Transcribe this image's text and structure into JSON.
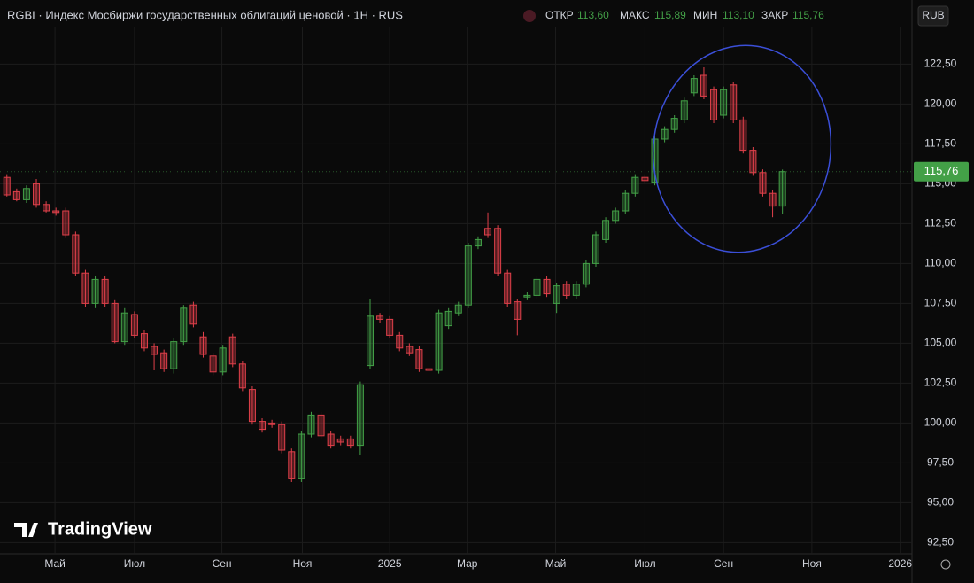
{
  "header": {
    "symbol": "RGBI · Индекс Мосбиржи государственных облигаций ценовой · 1Н · RUS",
    "open_label": "ОТКР",
    "open": "113,60",
    "high_label": "МАКС",
    "high": "115,89",
    "low_label": "МИН",
    "low": "113,10",
    "close_label": "ЗАКР",
    "close": "115,76",
    "currency": "RUB",
    "logo": "TradingView"
  },
  "chart_data": {
    "type": "candlestick",
    "up_color": "#43a047",
    "down_color": "#e0404a",
    "xlim": [
      -0.7,
      92.2
    ],
    "xticks": [
      {
        "value": 4.9,
        "label": "Май"
      },
      {
        "value": 13.0,
        "label": "Июл"
      },
      {
        "value": 21.9,
        "label": "Сен"
      },
      {
        "value": 30.1,
        "label": "Ноя"
      },
      {
        "value": 39.0,
        "label": "2025"
      },
      {
        "value": 46.9,
        "label": "Мар"
      },
      {
        "value": 55.9,
        "label": "Май"
      },
      {
        "value": 65.0,
        "label": "Июл"
      },
      {
        "value": 73.0,
        "label": "Сен"
      },
      {
        "value": 82.0,
        "label": "Ноя"
      },
      {
        "value": 91.0,
        "label": "2026"
      }
    ],
    "ylim": [
      91.8,
      124.8
    ],
    "yticks": [
      {
        "value": 92.5,
        "label": "92,50"
      },
      {
        "value": 95,
        "label": "95,00"
      },
      {
        "value": 97.5,
        "label": "97,50"
      },
      {
        "value": 100,
        "label": "100,00"
      },
      {
        "value": 102.5,
        "label": "102,50"
      },
      {
        "value": 105,
        "label": "105,00"
      },
      {
        "value": 107.5,
        "label": "107,50"
      },
      {
        "value": 110,
        "label": "110,00"
      },
      {
        "value": 112.5,
        "label": "112,50"
      },
      {
        "value": 115,
        "label": "115,00"
      },
      {
        "value": 117.5,
        "label": "117,50"
      },
      {
        "value": 120,
        "label": "120,00"
      },
      {
        "value": 122.5,
        "label": "122,50"
      }
    ],
    "last_price": {
      "value": 115.76,
      "label": "115,76"
    },
    "candles": [
      [
        115.4,
        115.6,
        114.2,
        114.3
      ],
      [
        114.5,
        114.7,
        113.9,
        114.0
      ],
      [
        114.0,
        114.9,
        113.8,
        114.7
      ],
      [
        115.0,
        115.3,
        113.5,
        113.7
      ],
      [
        113.7,
        113.9,
        113.2,
        113.3
      ],
      [
        113.3,
        113.5,
        113.0,
        113.2
      ],
      [
        113.3,
        113.5,
        111.6,
        111.8
      ],
      [
        111.8,
        112.0,
        109.2,
        109.4
      ],
      [
        109.4,
        109.6,
        107.3,
        107.5
      ],
      [
        107.5,
        109.2,
        107.2,
        109.0
      ],
      [
        109.0,
        109.2,
        107.3,
        107.5
      ],
      [
        107.5,
        107.7,
        105.0,
        105.1
      ],
      [
        105.1,
        107.2,
        104.9,
        106.9
      ],
      [
        106.8,
        107.0,
        105.3,
        105.5
      ],
      [
        105.6,
        105.8,
        104.5,
        104.7
      ],
      [
        104.8,
        105.0,
        103.3,
        104.3
      ],
      [
        104.4,
        104.6,
        103.2,
        103.4
      ],
      [
        103.4,
        105.3,
        103.1,
        105.1
      ],
      [
        105.1,
        107.4,
        104.9,
        107.2
      ],
      [
        107.4,
        107.6,
        106.0,
        106.2
      ],
      [
        105.4,
        105.7,
        104.1,
        104.3
      ],
      [
        104.2,
        104.4,
        103.0,
        103.2
      ],
      [
        103.2,
        104.9,
        103.0,
        104.7
      ],
      [
        105.4,
        105.6,
        103.5,
        103.7
      ],
      [
        103.7,
        103.9,
        102.0,
        102.2
      ],
      [
        102.1,
        102.3,
        99.9,
        100.1
      ],
      [
        100.1,
        100.3,
        99.4,
        99.6
      ],
      [
        100.0,
        100.2,
        99.7,
        99.9
      ],
      [
        99.9,
        100.1,
        98.1,
        98.3
      ],
      [
        98.2,
        98.4,
        96.3,
        96.5
      ],
      [
        96.5,
        99.5,
        96.3,
        99.3
      ],
      [
        99.3,
        100.7,
        99.1,
        100.5
      ],
      [
        100.5,
        100.7,
        99.0,
        99.2
      ],
      [
        99.3,
        99.5,
        98.4,
        98.6
      ],
      [
        99.0,
        99.2,
        98.6,
        98.8
      ],
      [
        99.0,
        99.2,
        98.4,
        98.6
      ],
      [
        98.6,
        102.6,
        98.0,
        102.4
      ],
      [
        103.6,
        107.8,
        103.4,
        106.7
      ],
      [
        106.7,
        106.9,
        106.3,
        106.5
      ],
      [
        106.5,
        106.7,
        105.3,
        105.5
      ],
      [
        105.5,
        105.7,
        104.5,
        104.7
      ],
      [
        104.8,
        105.0,
        104.2,
        104.4
      ],
      [
        104.6,
        104.8,
        103.2,
        103.4
      ],
      [
        103.4,
        103.6,
        102.3,
        103.3
      ],
      [
        103.3,
        107.1,
        103.1,
        106.9
      ],
      [
        106.1,
        107.2,
        105.9,
        107.0
      ],
      [
        106.9,
        107.6,
        106.7,
        107.4
      ],
      [
        107.4,
        111.3,
        107.2,
        111.1
      ],
      [
        111.1,
        111.7,
        110.9,
        111.5
      ],
      [
        112.2,
        113.2,
        111.6,
        111.8
      ],
      [
        112.2,
        112.4,
        109.2,
        109.4
      ],
      [
        109.4,
        109.6,
        107.3,
        107.5
      ],
      [
        107.6,
        107.8,
        105.5,
        106.5
      ],
      [
        107.9,
        108.2,
        107.7,
        108.0
      ],
      [
        108.0,
        109.2,
        107.8,
        109.0
      ],
      [
        109.0,
        109.2,
        107.9,
        108.1
      ],
      [
        107.5,
        108.8,
        106.9,
        108.6
      ],
      [
        108.7,
        108.9,
        107.8,
        108.0
      ],
      [
        108.0,
        108.9,
        107.8,
        108.7
      ],
      [
        108.7,
        110.2,
        108.5,
        110.0
      ],
      [
        110.0,
        112.0,
        109.8,
        111.8
      ],
      [
        111.5,
        112.9,
        111.3,
        112.7
      ],
      [
        112.7,
        113.5,
        112.5,
        113.3
      ],
      [
        113.3,
        114.6,
        113.1,
        114.4
      ],
      [
        114.4,
        115.6,
        114.2,
        115.4
      ],
      [
        115.4,
        115.6,
        115.0,
        115.2
      ],
      [
        115.1,
        118.0,
        114.9,
        117.8
      ],
      [
        117.8,
        118.6,
        117.6,
        118.4
      ],
      [
        118.4,
        119.3,
        118.2,
        119.1
      ],
      [
        119.0,
        120.4,
        118.8,
        120.2
      ],
      [
        120.7,
        121.8,
        120.5,
        121.6
      ],
      [
        121.8,
        122.3,
        120.3,
        120.5
      ],
      [
        120.9,
        121.1,
        118.8,
        119.0
      ],
      [
        119.3,
        121.1,
        119.1,
        120.9
      ],
      [
        121.2,
        121.4,
        118.8,
        119.0
      ],
      [
        119.0,
        119.2,
        116.9,
        117.1
      ],
      [
        117.1,
        117.3,
        115.5,
        115.7
      ],
      [
        115.7,
        115.9,
        114.2,
        114.4
      ],
      [
        114.4,
        114.6,
        112.9,
        113.6
      ],
      [
        113.6,
        115.89,
        113.1,
        115.76
      ]
    ]
  }
}
